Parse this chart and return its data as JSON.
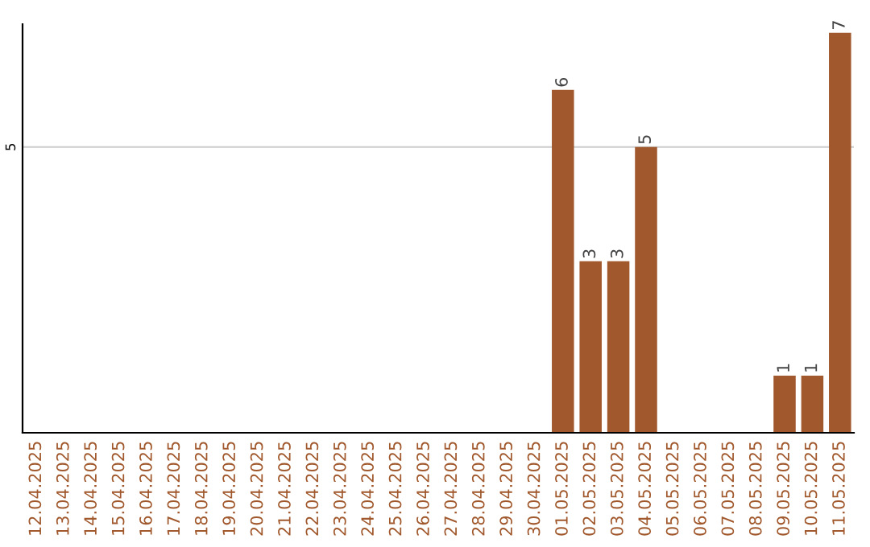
{
  "chart_data": {
    "type": "bar",
    "categories": [
      "12.04.2025",
      "13.04.2025",
      "14.04.2025",
      "15.04.2025",
      "16.04.2025",
      "17.04.2025",
      "18.04.2025",
      "19.04.2025",
      "20.04.2025",
      "21.04.2025",
      "22.04.2025",
      "23.04.2025",
      "24.04.2025",
      "25.04.2025",
      "26.04.2025",
      "27.04.2025",
      "28.04.2025",
      "29.04.2025",
      "30.04.2025",
      "01.05.2025",
      "02.05.2025",
      "03.05.2025",
      "04.05.2025",
      "05.05.2025",
      "06.05.2025",
      "07.05.2025",
      "08.05.2025",
      "09.05.2025",
      "10.05.2025",
      "11.05.2025"
    ],
    "values": [
      null,
      null,
      null,
      null,
      null,
      null,
      null,
      null,
      null,
      null,
      null,
      null,
      null,
      null,
      null,
      null,
      null,
      null,
      null,
      6,
      3,
      3,
      5,
      null,
      null,
      null,
      null,
      1,
      1,
      7
    ],
    "data_labels": true,
    "color": "#a0582c",
    "ylim": [
      0,
      7.15
    ],
    "yticks": [
      5
    ],
    "grid": "y"
  }
}
